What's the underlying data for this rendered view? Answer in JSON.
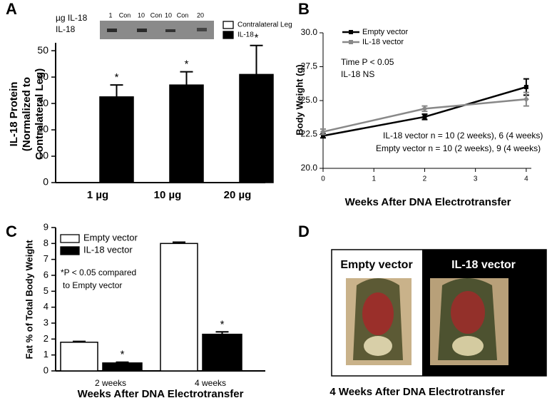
{
  "chart_data": [
    {
      "type": "bar",
      "label": "A",
      "ylabel": [
        "IL-18 Protein",
        "(Normalized to",
        "Contralateral Leg)"
      ],
      "gel_labels": [
        "µg IL-18",
        "IL-18"
      ],
      "gel_lanes": [
        "1",
        "Con",
        "10",
        "Con",
        "10",
        "Con",
        "20"
      ],
      "categories": [
        "1 µg",
        "10 µg",
        "20 µg"
      ],
      "series": [
        {
          "name": "Contralateral Leg",
          "color": "#ffffff",
          "values": [
            0,
            0,
            0
          ]
        },
        {
          "name": "IL-18",
          "color": "#000000",
          "values": [
            32.5,
            37,
            41
          ],
          "errors": [
            4.5,
            5,
            11
          ],
          "significance": [
            "*",
            "*",
            "*"
          ]
        }
      ],
      "ylim": [
        0,
        53
      ],
      "yticks": [
        0,
        10,
        20,
        30,
        40,
        50
      ]
    },
    {
      "type": "line",
      "label": "B",
      "xlabel": "Weeks After DNA Electrotransfer",
      "ylabel": "Body Weight (g)",
      "x": [
        0,
        2,
        4
      ],
      "series": [
        {
          "name": "Empty vector",
          "color": "#000000",
          "values": [
            22.4,
            23.8,
            26.0
          ],
          "errors": [
            0.15,
            0.2,
            0.6
          ]
        },
        {
          "name": "IL-18 vector",
          "color": "#888888",
          "values": [
            22.7,
            24.4,
            25.1
          ],
          "errors": [
            0.2,
            0.2,
            0.5
          ]
        }
      ],
      "annotations": [
        "Time P < 0.05",
        "IL-18 NS",
        "IL-18 vector n = 10 (2 weeks), 6 (4 weeks)",
        "Empty vector n = 10 (2 weeks), 9 (4 weeks)"
      ],
      "xlim": [
        0,
        4.1
      ],
      "xticks": [
        0,
        1,
        2,
        3,
        4
      ],
      "ylim": [
        20,
        30
      ],
      "yticks": [
        {
          "value": 20,
          "label": "20.0"
        },
        {
          "value": 22.5,
          "label": "22.5"
        },
        {
          "value": 25,
          "label": "25.0"
        },
        {
          "value": 27.5,
          "label": "27.5"
        },
        {
          "value": 30,
          "label": "30.0"
        }
      ]
    },
    {
      "type": "bar",
      "label": "C",
      "xlabel": "Weeks After DNA Electrotransfer",
      "ylabel": [
        "Fat % of Total Body Weight"
      ],
      "categories": [
        "2 weeks",
        "4 weeks"
      ],
      "series": [
        {
          "name": "Empty vector",
          "color": "#ffffff",
          "values": [
            1.8,
            8.0
          ],
          "errors": [
            0.05,
            0.08
          ]
        },
        {
          "name": "IL-18 vector",
          "color": "#000000",
          "values": [
            0.5,
            2.3
          ],
          "errors": [
            0.05,
            0.15
          ],
          "significance": [
            "*",
            "*"
          ]
        }
      ],
      "annotations": [
        "*P < 0.05 compared",
        "to Empty vector"
      ],
      "ylim": [
        0,
        9
      ],
      "yticks": [
        0,
        1,
        2,
        3,
        4,
        5,
        6,
        7,
        8,
        9
      ]
    }
  ],
  "panel_d": {
    "label": "D",
    "left_title": "Empty vector",
    "right_title": "IL-18 vector",
    "caption": "4 Weeks After DNA Electrotransfer"
  }
}
